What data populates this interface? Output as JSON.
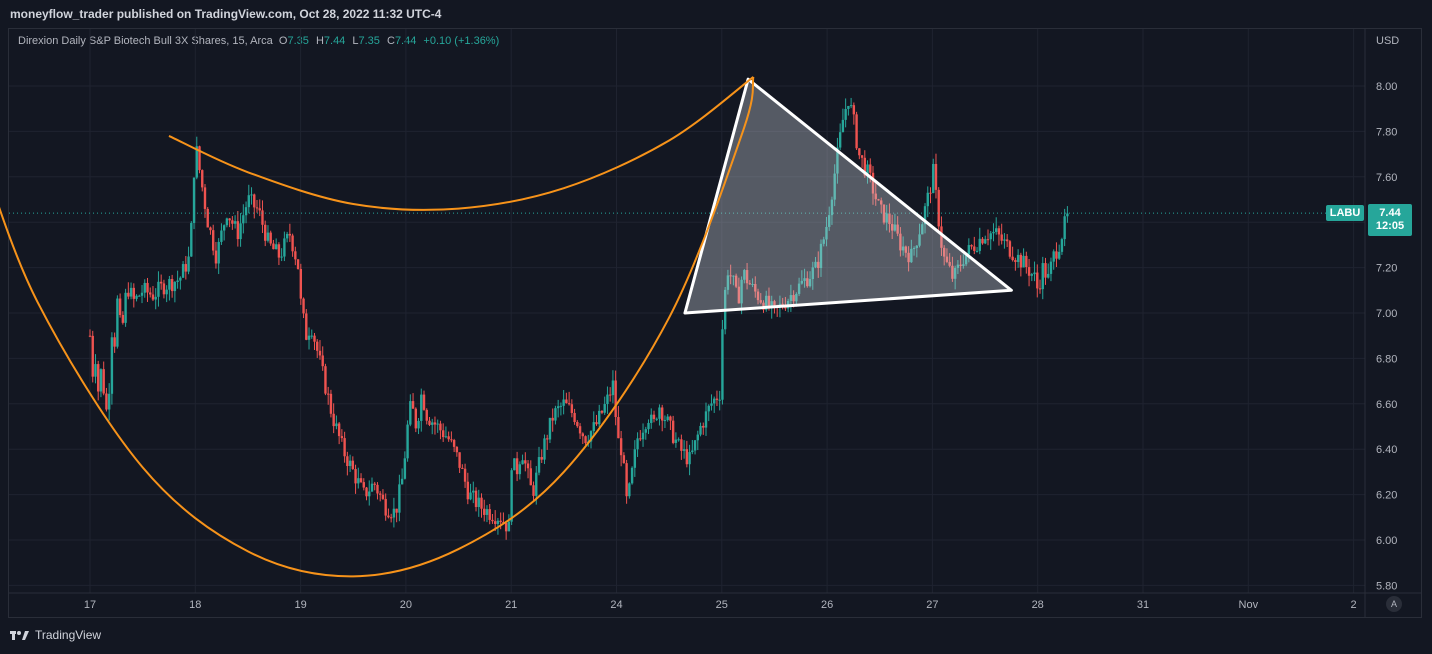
{
  "caption": "moneyflow_trader published on TradingView.com, Oct 28, 2022 11:32 UTC-4",
  "legend": {
    "instrument": "Direxion Daily S&P Biotech Bull 3X Shares, 15, Arca",
    "o_label": "O",
    "o": "7.35",
    "h_label": "H",
    "h": "7.44",
    "l_label": "L",
    "l": "7.35",
    "c_label": "C",
    "c": "7.44",
    "change": "+0.10 (+1.36%)"
  },
  "currency": "USD",
  "last_price": {
    "symbol": "LABU",
    "price": "7.44",
    "countdown": "12:05"
  },
  "footer": {
    "brand": "TradingView"
  },
  "auto_label": "A",
  "colors": {
    "background": "#131722",
    "up": "#26a69a",
    "down": "#ef5350",
    "curve": "#f7931a",
    "triangle": "#ffffff"
  },
  "chart_data": {
    "type": "candlestick",
    "interval": "15",
    "ylim": [
      5.78,
      8.12
    ],
    "yticks": [
      "8.00",
      "7.80",
      "7.60",
      "7.40",
      "7.20",
      "7.00",
      "6.80",
      "6.60",
      "6.40",
      "6.20",
      "6.00",
      "5.80"
    ],
    "xticks": [
      "17",
      "18",
      "19",
      "20",
      "21",
      "24",
      "25",
      "26",
      "27",
      "28",
      "31",
      "Nov",
      "2"
    ],
    "last_price_line": 7.44,
    "price_path": [
      [
        0,
        6.9
      ],
      [
        0.02,
        6.72
      ],
      [
        0.05,
        6.82
      ],
      [
        0.08,
        6.65
      ],
      [
        0.1,
        6.75
      ],
      [
        0.12,
        6.7
      ],
      [
        0.15,
        6.6
      ],
      [
        0.17,
        6.5
      ],
      [
        0.2,
        6.95
      ],
      [
        0.23,
        6.85
      ],
      [
        0.26,
        7.05
      ],
      [
        0.3,
        6.9
      ],
      [
        0.35,
        7.12
      ],
      [
        0.42,
        7.05
      ],
      [
        0.5,
        7.1
      ],
      [
        0.6,
        7.08
      ],
      [
        0.7,
        7.12
      ],
      [
        0.85,
        7.15
      ],
      [
        0.95,
        7.25
      ],
      [
        1.0,
        7.75
      ],
      [
        1.05,
        7.6
      ],
      [
        1.12,
        7.4
      ],
      [
        1.2,
        7.25
      ],
      [
        1.3,
        7.45
      ],
      [
        1.4,
        7.35
      ],
      [
        1.5,
        7.5
      ],
      [
        1.6,
        7.45
      ],
      [
        1.7,
        7.3
      ],
      [
        1.8,
        7.25
      ],
      [
        1.9,
        7.35
      ],
      [
        1.98,
        7.2
      ],
      [
        2.0,
        7.05
      ],
      [
        2.05,
        6.9
      ],
      [
        2.1,
        6.95
      ],
      [
        2.2,
        6.75
      ],
      [
        2.3,
        6.55
      ],
      [
        2.4,
        6.4
      ],
      [
        2.5,
        6.3
      ],
      [
        2.6,
        6.2
      ],
      [
        2.7,
        6.25
      ],
      [
        2.8,
        6.15
      ],
      [
        2.9,
        6.12
      ],
      [
        2.98,
        6.3
      ],
      [
        3.0,
        6.45
      ],
      [
        3.05,
        6.6
      ],
      [
        3.1,
        6.5
      ],
      [
        3.15,
        6.65
      ],
      [
        3.2,
        6.55
      ],
      [
        3.3,
        6.5
      ],
      [
        3.4,
        6.45
      ],
      [
        3.5,
        6.35
      ],
      [
        3.6,
        6.2
      ],
      [
        3.7,
        6.15
      ],
      [
        3.8,
        6.12
      ],
      [
        3.9,
        6.1
      ],
      [
        3.98,
        6.05
      ],
      [
        4.0,
        6.35
      ],
      [
        4.05,
        6.3
      ],
      [
        4.1,
        6.4
      ],
      [
        4.2,
        6.2
      ],
      [
        4.3,
        6.4
      ],
      [
        4.4,
        6.55
      ],
      [
        4.5,
        6.6
      ],
      [
        4.6,
        6.55
      ],
      [
        4.7,
        6.45
      ],
      [
        4.8,
        6.5
      ],
      [
        4.9,
        6.6
      ],
      [
        4.98,
        6.7
      ],
      [
        5.0,
        6.45
      ],
      [
        5.05,
        6.4
      ],
      [
        5.1,
        6.15
      ],
      [
        5.15,
        6.3
      ],
      [
        5.2,
        6.45
      ],
      [
        5.3,
        6.55
      ],
      [
        5.35,
        6.5
      ],
      [
        5.4,
        6.6
      ],
      [
        5.5,
        6.5
      ],
      [
        5.6,
        6.4
      ],
      [
        5.7,
        6.35
      ],
      [
        5.8,
        6.5
      ],
      [
        5.9,
        6.6
      ],
      [
        5.98,
        6.65
      ],
      [
        6.0,
        6.9
      ],
      [
        6.05,
        7.2
      ],
      [
        6.1,
        7.15
      ],
      [
        6.15,
        7.05
      ],
      [
        6.2,
        7.18
      ],
      [
        6.3,
        7.1
      ],
      [
        6.4,
        7.05
      ],
      [
        6.5,
        7.0
      ],
      [
        6.6,
        7.05
      ],
      [
        6.7,
        7.1
      ],
      [
        6.8,
        7.15
      ],
      [
        6.9,
        7.2
      ],
      [
        6.98,
        7.35
      ],
      [
        7.0,
        7.4
      ],
      [
        7.05,
        7.55
      ],
      [
        7.1,
        7.7
      ],
      [
        7.15,
        7.85
      ],
      [
        7.2,
        7.95
      ],
      [
        7.25,
        7.85
      ],
      [
        7.3,
        7.7
      ],
      [
        7.4,
        7.6
      ],
      [
        7.5,
        7.45
      ],
      [
        7.6,
        7.4
      ],
      [
        7.7,
        7.3
      ],
      [
        7.8,
        7.25
      ],
      [
        7.9,
        7.4
      ],
      [
        7.98,
        7.55
      ],
      [
        8.0,
        7.65
      ],
      [
        8.05,
        7.45
      ],
      [
        8.1,
        7.25
      ],
      [
        8.2,
        7.15
      ],
      [
        8.3,
        7.25
      ],
      [
        8.4,
        7.3
      ],
      [
        8.5,
        7.35
      ],
      [
        8.6,
        7.35
      ],
      [
        8.7,
        7.3
      ],
      [
        8.8,
        7.25
      ],
      [
        8.9,
        7.2
      ],
      [
        8.98,
        7.15
      ],
      [
        9.0,
        7.1
      ],
      [
        9.05,
        7.2
      ],
      [
        9.1,
        7.15
      ],
      [
        9.15,
        7.25
      ],
      [
        9.2,
        7.3
      ],
      [
        9.25,
        7.38
      ],
      [
        9.3,
        7.44
      ]
    ],
    "overlays": {
      "cup_curve": [
        [
          -1.05,
          7.72
        ],
        [
          -0.5,
          7.05
        ],
        [
          0.5,
          6.32
        ],
        [
          1.5,
          5.95
        ],
        [
          2.5,
          5.84
        ],
        [
          3.5,
          5.96
        ],
        [
          4.5,
          6.3
        ],
        [
          5.5,
          6.98
        ],
        [
          6.2,
          7.8
        ],
        [
          6.3,
          8.04
        ]
      ],
      "rim_curve": [
        [
          0.75,
          7.78
        ],
        [
          1.5,
          7.62
        ],
        [
          2.5,
          7.48
        ],
        [
          3.5,
          7.46
        ],
        [
          4.5,
          7.55
        ],
        [
          5.5,
          7.76
        ],
        [
          6.3,
          8.04
        ]
      ],
      "triangle": [
        [
          5.65,
          7.0
        ],
        [
          6.25,
          8.03
        ],
        [
          8.75,
          7.1
        ]
      ]
    }
  }
}
